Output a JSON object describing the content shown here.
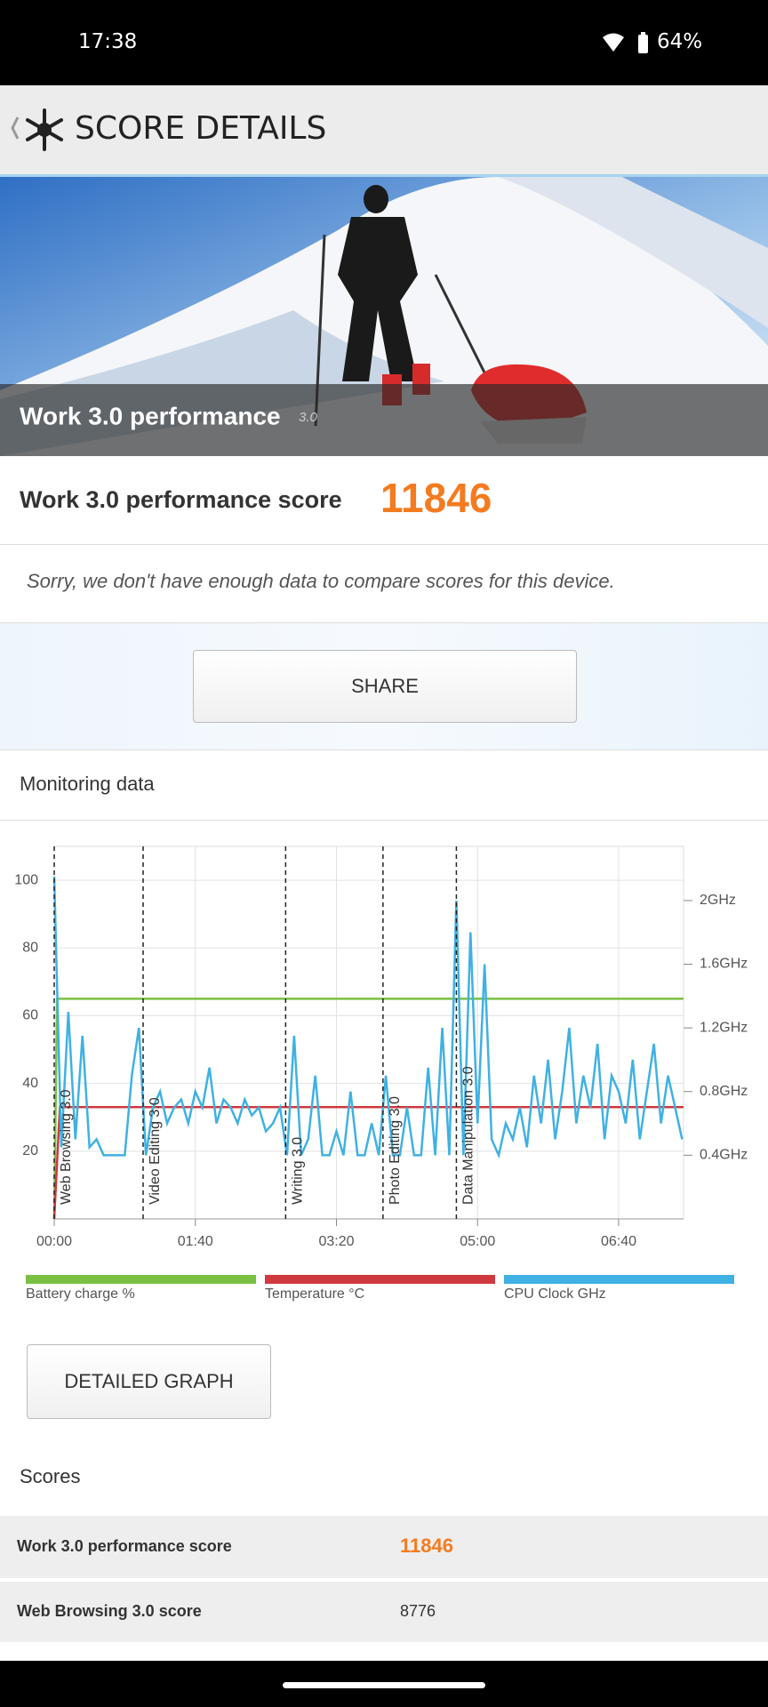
{
  "status_bar": {
    "time": "17:38",
    "battery": "64%"
  },
  "header": {
    "title": "SCORE DETAILS"
  },
  "hero": {
    "title": "Work 3.0 performance",
    "version": "3.0"
  },
  "score_card": {
    "label": "Work 3.0 performance score",
    "score": "11846",
    "note": "Sorry, we don't have enough data to compare scores for this device."
  },
  "share_button": "SHARE",
  "monitoring": {
    "title": "Monitoring data",
    "button": "DETAILED GRAPH"
  },
  "chart_data": {
    "type": "line",
    "xlim": [
      0,
      446
    ],
    "xticks": [
      {
        "value": 0,
        "label": "00:00"
      },
      {
        "value": 100,
        "label": "01:40"
      },
      {
        "value": 200,
        "label": "03:20"
      },
      {
        "value": 300,
        "label": "05:00"
      },
      {
        "value": 400,
        "label": "06:40"
      }
    ],
    "ylim": [
      0,
      110
    ],
    "yticks": [
      20,
      40,
      60,
      80,
      100
    ],
    "y2lim": [
      0,
      2.34
    ],
    "y2ticks": [
      {
        "value": 0.4,
        "label": "0.4GHz"
      },
      {
        "value": 0.8,
        "label": "0.8GHz"
      },
      {
        "value": 1.2,
        "label": "1.2GHz"
      },
      {
        "value": 1.6,
        "label": "1.6GHz"
      },
      {
        "value": 2,
        "label": "2GHz"
      }
    ],
    "grid": true,
    "annotations": [
      {
        "x": 0,
        "label": "Web Browsing 3.0"
      },
      {
        "x": 63,
        "label": "Video Editing 3.0"
      },
      {
        "x": 164,
        "label": "Writing 3.0"
      },
      {
        "x": 233,
        "label": "Photo Editing 3.0"
      },
      {
        "x": 285,
        "label": "Data Manipulation 3.0"
      }
    ],
    "series": [
      {
        "name": "Battery charge %",
        "color": "#7ac143",
        "x": [
          0,
          2,
          446
        ],
        "values": [
          0,
          65,
          65
        ]
      },
      {
        "name": "Temperature °C",
        "color": "#d0393e",
        "x": [
          0,
          4,
          446
        ],
        "values": [
          0,
          33,
          33
        ]
      },
      {
        "name": "CPU Clock GHz",
        "color": "#3fb1e3",
        "axis": "y2",
        "x": [
          0,
          5,
          10,
          15,
          20,
          25,
          30,
          35,
          40,
          45,
          50,
          55,
          60,
          65,
          70,
          75,
          80,
          85,
          90,
          95,
          100,
          105,
          110,
          115,
          120,
          125,
          130,
          135,
          140,
          145,
          150,
          155,
          160,
          165,
          170,
          175,
          180,
          185,
          190,
          195,
          200,
          205,
          210,
          215,
          220,
          225,
          230,
          235,
          240,
          245,
          250,
          255,
          260,
          265,
          270,
          275,
          280,
          285,
          290,
          295,
          300,
          305,
          310,
          315,
          320,
          325,
          330,
          335,
          340,
          345,
          350,
          355,
          360,
          365,
          370,
          375,
          380,
          385,
          390,
          395,
          400,
          405,
          410,
          415,
          420,
          425,
          430,
          435,
          440,
          445
        ],
        "values": [
          2.15,
          0.45,
          1.3,
          0.5,
          1.15,
          0.45,
          0.5,
          0.4,
          0.4,
          0.4,
          0.4,
          0.9,
          1.2,
          0.4,
          0.7,
          0.8,
          0.6,
          0.7,
          0.75,
          0.6,
          0.8,
          0.7,
          0.95,
          0.6,
          0.75,
          0.7,
          0.6,
          0.75,
          0.65,
          0.7,
          0.55,
          0.6,
          0.7,
          0.4,
          1.15,
          0.4,
          0.5,
          0.9,
          0.4,
          0.4,
          0.55,
          0.4,
          0.8,
          0.4,
          0.4,
          0.6,
          0.4,
          0.9,
          0.4,
          0.4,
          0.7,
          0.4,
          0.4,
          0.95,
          0.4,
          1.2,
          0.4,
          2.0,
          0.4,
          1.8,
          0.6,
          1.6,
          0.5,
          0.4,
          0.6,
          0.5,
          0.7,
          0.45,
          0.9,
          0.6,
          1.0,
          0.5,
          0.8,
          1.2,
          0.6,
          0.9,
          0.7,
          1.1,
          0.5,
          0.9,
          0.8,
          0.6,
          1.0,
          0.5,
          0.8,
          1.1,
          0.6,
          0.9,
          0.7,
          0.5
        ]
      }
    ]
  },
  "scores": {
    "title": "Scores",
    "rows": [
      [
        "Work 3.0 performance score",
        "11846"
      ],
      [
        "Web Browsing 3.0 score",
        "8776"
      ]
    ]
  }
}
